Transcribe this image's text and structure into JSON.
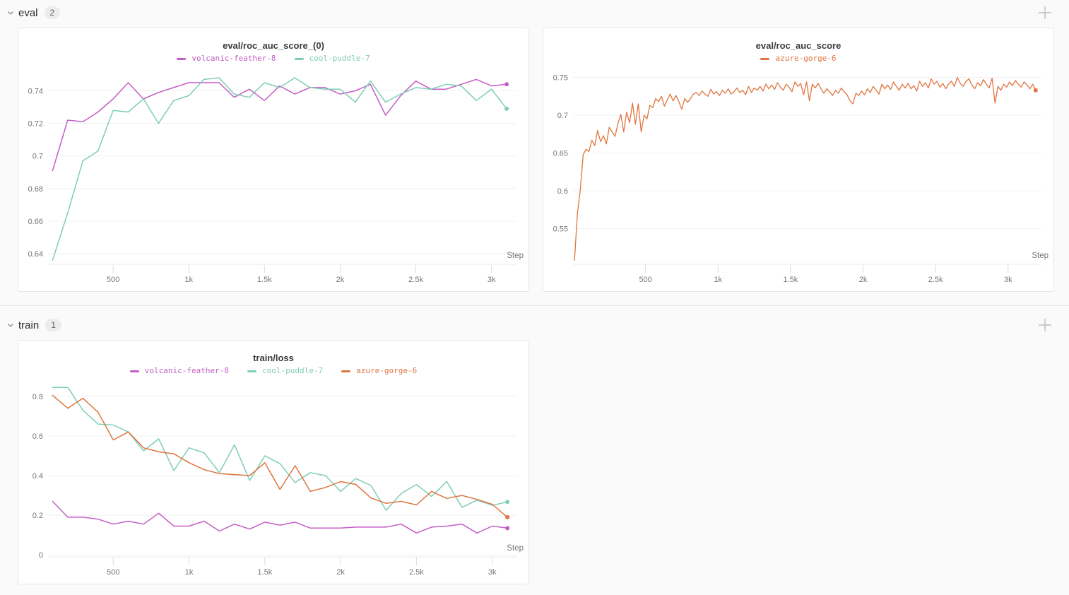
{
  "colors": {
    "page_bg": "#fafafa",
    "panel_border": "#e6e6e6",
    "grid": "#f1f1f1",
    "axis": "#e8e8e8",
    "tick": "#dcdcdc",
    "tick_label": "#757575"
  },
  "icons": {
    "chevron_down": "chevron-down-icon",
    "plus": "plus-icon"
  },
  "sections": [
    {
      "label": "eval",
      "count": "2"
    },
    {
      "label": "train",
      "count": "1"
    }
  ],
  "chart_data": [
    {
      "type": "line",
      "title": "eval/roc_auc_score_(0)",
      "xlabel": "Step",
      "legend_position": "top",
      "grid": "horizontal",
      "xlim": [
        70,
        3165
      ],
      "ylim": [
        0.6335,
        0.7515
      ],
      "x_tick_values": [
        500,
        1000,
        1500,
        2000,
        2500,
        3000
      ],
      "x_tick_labels": [
        "500",
        "1k",
        "1.5k",
        "2k",
        "2.5k",
        "3k"
      ],
      "y_tick_values": [
        0.64,
        0.66,
        0.68,
        0.7,
        0.72,
        0.74
      ],
      "y_tick_labels": [
        "0.64",
        "0.66",
        "0.68",
        "0.7",
        "0.72",
        "0.74"
      ],
      "series": [
        {
          "name": "volcanic-feather-8",
          "color": "#c45dc6",
          "x": [
            100,
            200,
            300,
            400,
            500,
            600,
            700,
            800,
            900,
            1000,
            1100,
            1200,
            1300,
            1400,
            1500,
            1600,
            1700,
            1800,
            1900,
            2000,
            2100,
            2200,
            2300,
            2400,
            2500,
            2600,
            2700,
            2800,
            2900,
            3000,
            3100
          ],
          "y": [
            0.691,
            0.722,
            0.721,
            0.727,
            0.735,
            0.745,
            0.735,
            0.739,
            0.742,
            0.745,
            0.745,
            0.745,
            0.736,
            0.741,
            0.734,
            0.743,
            0.738,
            0.742,
            0.742,
            0.738,
            0.74,
            0.744,
            0.725,
            0.737,
            0.746,
            0.741,
            0.741,
            0.744,
            0.747,
            0.743,
            0.744
          ]
        },
        {
          "name": "cool-puddle-7",
          "color": "#7ecdb8",
          "x": [
            100,
            200,
            300,
            400,
            500,
            600,
            700,
            800,
            900,
            1000,
            1100,
            1200,
            1300,
            1400,
            1500,
            1600,
            1700,
            1800,
            1900,
            2000,
            2100,
            2200,
            2300,
            2400,
            2500,
            2600,
            2700,
            2800,
            2900,
            3000,
            3100
          ],
          "y": [
            0.636,
            0.665,
            0.697,
            0.703,
            0.728,
            0.727,
            0.735,
            0.72,
            0.734,
            0.737,
            0.747,
            0.748,
            0.738,
            0.736,
            0.745,
            0.742,
            0.748,
            0.742,
            0.741,
            0.741,
            0.733,
            0.746,
            0.733,
            0.738,
            0.742,
            0.741,
            0.744,
            0.743,
            0.734,
            0.741,
            0.729
          ]
        }
      ]
    },
    {
      "type": "line",
      "title": "eval/roc_auc_score",
      "xlabel": "Step",
      "legend_position": "top",
      "grid": "horizontal",
      "xlim": [
        0,
        3230
      ],
      "ylim": [
        0.503,
        0.757
      ],
      "x_tick_values": [
        500,
        1000,
        1500,
        2000,
        2500,
        3000
      ],
      "x_tick_labels": [
        "500",
        "1k",
        "1.5k",
        "2k",
        "2.5k",
        "3k"
      ],
      "y_tick_values": [
        0.55,
        0.6,
        0.65,
        0.7,
        0.75
      ],
      "y_tick_labels": [
        "0.55",
        "0.6",
        "0.65",
        "0.7",
        "0.75"
      ],
      "series": [
        {
          "name": "azure-gorge-6",
          "color": "#e0743f",
          "x": [
            10,
            30,
            50,
            70,
            90,
            110,
            130,
            150,
            170,
            190,
            210,
            230,
            250,
            270,
            290,
            310,
            330,
            350,
            370,
            390,
            410,
            430,
            450,
            470,
            490,
            510,
            530,
            550,
            570,
            590,
            610,
            630,
            650,
            670,
            690,
            710,
            730,
            750,
            770,
            790,
            810,
            830,
            850,
            870,
            890,
            910,
            930,
            950,
            970,
            990,
            1010,
            1030,
            1050,
            1070,
            1090,
            1110,
            1130,
            1150,
            1170,
            1190,
            1210,
            1230,
            1250,
            1270,
            1290,
            1310,
            1330,
            1350,
            1370,
            1390,
            1410,
            1430,
            1450,
            1470,
            1490,
            1510,
            1530,
            1550,
            1570,
            1590,
            1610,
            1630,
            1650,
            1670,
            1690,
            1710,
            1730,
            1750,
            1770,
            1790,
            1810,
            1830,
            1850,
            1870,
            1890,
            1910,
            1930,
            1950,
            1970,
            1990,
            2010,
            2030,
            2050,
            2070,
            2090,
            2110,
            2130,
            2150,
            2170,
            2190,
            2210,
            2230,
            2250,
            2270,
            2290,
            2310,
            2330,
            2350,
            2370,
            2390,
            2410,
            2430,
            2450,
            2470,
            2490,
            2510,
            2530,
            2550,
            2570,
            2590,
            2610,
            2630,
            2650,
            2670,
            2690,
            2710,
            2730,
            2750,
            2770,
            2790,
            2810,
            2830,
            2850,
            2870,
            2890,
            2910,
            2930,
            2950,
            2970,
            2990,
            3010,
            3030,
            3050,
            3070,
            3090,
            3110,
            3130,
            3150,
            3170,
            3190
          ],
          "y": [
            0.508,
            0.57,
            0.601,
            0.648,
            0.655,
            0.652,
            0.667,
            0.66,
            0.68,
            0.665,
            0.673,
            0.662,
            0.684,
            0.678,
            0.672,
            0.689,
            0.701,
            0.678,
            0.704,
            0.69,
            0.716,
            0.688,
            0.715,
            0.678,
            0.7,
            0.695,
            0.713,
            0.71,
            0.722,
            0.718,
            0.725,
            0.712,
            0.72,
            0.728,
            0.719,
            0.726,
            0.718,
            0.708,
            0.722,
            0.717,
            0.722,
            0.728,
            0.73,
            0.726,
            0.732,
            0.728,
            0.725,
            0.734,
            0.728,
            0.731,
            0.726,
            0.733,
            0.729,
            0.735,
            0.728,
            0.731,
            0.736,
            0.73,
            0.733,
            0.727,
            0.738,
            0.73,
            0.736,
            0.733,
            0.738,
            0.732,
            0.741,
            0.735,
            0.74,
            0.734,
            0.743,
            0.737,
            0.733,
            0.741,
            0.737,
            0.731,
            0.744,
            0.738,
            0.742,
            0.727,
            0.744,
            0.719,
            0.741,
            0.736,
            0.742,
            0.735,
            0.729,
            0.735,
            0.731,
            0.726,
            0.733,
            0.729,
            0.736,
            0.731,
            0.727,
            0.719,
            0.715,
            0.729,
            0.726,
            0.732,
            0.727,
            0.735,
            0.73,
            0.738,
            0.733,
            0.728,
            0.741,
            0.735,
            0.74,
            0.734,
            0.744,
            0.738,
            0.733,
            0.741,
            0.736,
            0.742,
            0.735,
            0.739,
            0.732,
            0.745,
            0.738,
            0.743,
            0.736,
            0.748,
            0.741,
            0.745,
            0.737,
            0.742,
            0.735,
            0.741,
            0.745,
            0.738,
            0.75,
            0.742,
            0.738,
            0.745,
            0.748,
            0.74,
            0.735,
            0.743,
            0.739,
            0.747,
            0.741,
            0.736,
            0.749,
            0.716,
            0.738,
            0.733,
            0.741,
            0.737,
            0.744,
            0.739,
            0.746,
            0.741,
            0.737,
            0.744,
            0.74,
            0.735,
            0.741,
            0.733
          ]
        }
      ]
    },
    {
      "type": "line",
      "title": "train/loss",
      "xlabel": "Step",
      "legend_position": "top",
      "grid": "horizontal",
      "xlim": [
        70,
        3160
      ],
      "ylim": [
        -0.01,
        0.86
      ],
      "x_tick_values": [
        500,
        1000,
        1500,
        2000,
        2500,
        3000
      ],
      "x_tick_labels": [
        "500",
        "1k",
        "1.5k",
        "2k",
        "2.5k",
        "3k"
      ],
      "y_tick_values": [
        0,
        0.2,
        0.4,
        0.6,
        0.8
      ],
      "y_tick_labels": [
        "0",
        "0.2",
        "0.4",
        "0.6",
        "0.8"
      ],
      "series": [
        {
          "name": "volcanic-feather-8",
          "color": "#c45dc6",
          "x": [
            100,
            200,
            300,
            400,
            500,
            600,
            700,
            800,
            900,
            1000,
            1100,
            1200,
            1300,
            1400,
            1500,
            1600,
            1700,
            1800,
            1900,
            2000,
            2100,
            2200,
            2300,
            2400,
            2500,
            2600,
            2700,
            2800,
            2900,
            3000,
            3100
          ],
          "y": [
            0.27,
            0.19,
            0.19,
            0.18,
            0.155,
            0.17,
            0.155,
            0.21,
            0.145,
            0.145,
            0.17,
            0.12,
            0.155,
            0.13,
            0.165,
            0.15,
            0.165,
            0.135,
            0.135,
            0.135,
            0.14,
            0.14,
            0.14,
            0.155,
            0.11,
            0.14,
            0.145,
            0.155,
            0.11,
            0.145,
            0.135
          ]
        },
        {
          "name": "cool-puddle-7",
          "color": "#7ecdb8",
          "x": [
            100,
            200,
            300,
            400,
            500,
            600,
            700,
            800,
            900,
            1000,
            1100,
            1200,
            1300,
            1400,
            1500,
            1600,
            1700,
            1800,
            1900,
            2000,
            2100,
            2200,
            2300,
            2400,
            2500,
            2600,
            2700,
            2800,
            2900,
            3000,
            3100
          ],
          "y": [
            0.845,
            0.845,
            0.73,
            0.66,
            0.655,
            0.62,
            0.525,
            0.585,
            0.425,
            0.54,
            0.515,
            0.415,
            0.555,
            0.375,
            0.5,
            0.46,
            0.365,
            0.415,
            0.4,
            0.32,
            0.385,
            0.35,
            0.225,
            0.31,
            0.355,
            0.295,
            0.37,
            0.24,
            0.276,
            0.25,
            0.267
          ]
        },
        {
          "name": "azure-gorge-6",
          "color": "#e0743f",
          "x": [
            100,
            200,
            300,
            400,
            500,
            600,
            700,
            800,
            900,
            1000,
            1100,
            1200,
            1300,
            1400,
            1500,
            1600,
            1700,
            1800,
            1900,
            2000,
            2100,
            2200,
            2300,
            2400,
            2500,
            2600,
            2700,
            2800,
            2900,
            3000,
            3100
          ],
          "y": [
            0.805,
            0.74,
            0.79,
            0.72,
            0.58,
            0.62,
            0.54,
            0.52,
            0.51,
            0.465,
            0.43,
            0.41,
            0.405,
            0.4,
            0.465,
            0.33,
            0.45,
            0.32,
            0.34,
            0.37,
            0.355,
            0.287,
            0.26,
            0.27,
            0.252,
            0.32,
            0.285,
            0.3,
            0.28,
            0.255,
            0.19
          ]
        }
      ]
    }
  ]
}
